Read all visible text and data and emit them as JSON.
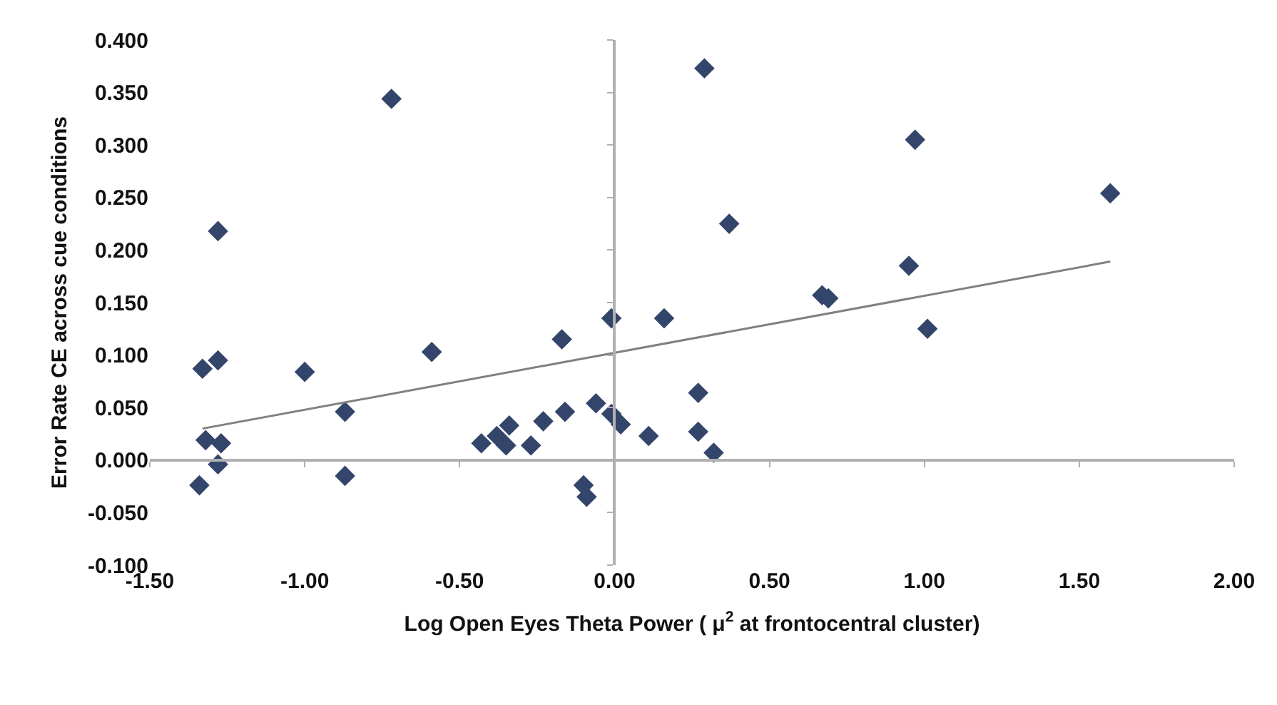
{
  "chart_data": {
    "type": "scatter",
    "xlabel": "Log Open Eyes Theta Power ( μ$^{2}$ at frontocentral cluster)",
    "ylabel": "Error Rate CE across cue conditions",
    "xlim": [
      -1.5,
      2.0
    ],
    "ylim": [
      -0.1,
      0.4
    ],
    "xticks": [
      {
        "value": -1.5,
        "label": "-1.50"
      },
      {
        "value": -1.0,
        "label": "-1.00"
      },
      {
        "value": -0.5,
        "label": "-0.50"
      },
      {
        "value": 0,
        "label": "0.00"
      },
      {
        "value": 0.5,
        "label": "0.50"
      },
      {
        "value": 1.0,
        "label": "1.00"
      },
      {
        "value": 1.5,
        "label": "1.50"
      },
      {
        "value": 2.0,
        "label": "2.00"
      }
    ],
    "yticks": [
      {
        "value": -0.1,
        "label": "-0.100"
      },
      {
        "value": -0.05,
        "label": "-0.050"
      },
      {
        "value": 0,
        "label": "0.000"
      },
      {
        "value": 0.05,
        "label": "0.050"
      },
      {
        "value": 0.1,
        "label": "0.100"
      },
      {
        "value": 0.15,
        "label": "0.150"
      },
      {
        "value": 0.2,
        "label": "0.200"
      },
      {
        "value": 0.25,
        "label": "0.250"
      },
      {
        "value": 0.3,
        "label": "0.300"
      },
      {
        "value": 0.35,
        "label": "0.350"
      },
      {
        "value": 0.4,
        "label": "0.400"
      }
    ],
    "marker": "diamond",
    "series": [
      {
        "color": "#34456b",
        "x": [
          -1.34,
          -1.28,
          -1.33,
          -1.28,
          -1.32,
          -1.27,
          -1.28,
          -1.0,
          -0.87,
          -0.87,
          -0.72,
          -0.59,
          -0.43,
          -0.38,
          -0.34,
          -0.35,
          -0.27,
          -0.23,
          -0.16,
          -0.17,
          -0.1,
          -0.09,
          -0.06,
          -0.01,
          0.02,
          -0.01,
          0.16,
          0.11,
          0.27,
          0.27,
          0.32,
          0.29,
          0.37,
          0.67,
          0.69,
          0.95,
          0.97,
          1.01,
          1.6
        ],
        "values": [
          -0.024,
          0.218,
          0.087,
          0.095,
          0.019,
          0.016,
          -0.004,
          0.084,
          0.046,
          -0.015,
          0.344,
          0.103,
          0.016,
          0.023,
          0.033,
          0.014,
          0.014,
          0.037,
          0.046,
          0.115,
          -0.024,
          -0.035,
          0.054,
          0.044,
          0.034,
          0.135,
          0.135,
          0.023,
          0.064,
          0.027,
          0.007,
          0.373,
          0.225,
          0.157,
          0.154,
          0.185,
          0.305,
          0.125,
          0.254
        ]
      },
      {
        "type": "line",
        "color": "#808080",
        "marker": "none",
        "x": [
          -1.33,
          1.6
        ],
        "values": [
          0.03,
          0.189
        ]
      }
    ]
  }
}
